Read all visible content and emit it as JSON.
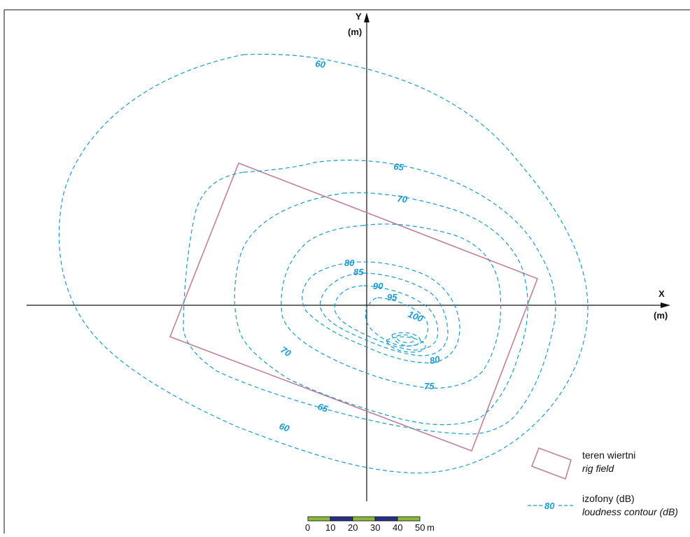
{
  "axes": {
    "x_label": "X",
    "x_unit": "(m)",
    "y_label": "Y",
    "y_unit": "(m)"
  },
  "contours": [
    {
      "level": 60,
      "labels": [
        "60",
        "60"
      ]
    },
    {
      "level": 65,
      "labels": [
        "65",
        "65"
      ]
    },
    {
      "level": 70,
      "labels": [
        "70",
        "70"
      ]
    },
    {
      "level": 75,
      "labels": [
        "75"
      ]
    },
    {
      "level": 80,
      "labels": [
        "80",
        "80"
      ]
    },
    {
      "level": 85,
      "labels": [
        "85"
      ]
    },
    {
      "level": 90,
      "labels": [
        "90"
      ]
    },
    {
      "level": 95,
      "labels": [
        "95"
      ]
    },
    {
      "level": 100,
      "labels": [
        "100"
      ]
    }
  ],
  "legend": {
    "rig_field_pl": "teren wiertni",
    "rig_field_en": "rig field",
    "contour_sample": "80",
    "contour_pl": "izofony (dB)",
    "contour_en": "loudness contour (dB)"
  },
  "scale_bar": {
    "ticks": [
      "0",
      "10",
      "20",
      "30",
      "40",
      "50"
    ],
    "unit": "m",
    "colors": [
      "#8ab83a",
      "#2a2f86"
    ]
  },
  "colors": {
    "contour": "#1a9ad0",
    "rig": "#c0809a",
    "axis": "#111111"
  }
}
